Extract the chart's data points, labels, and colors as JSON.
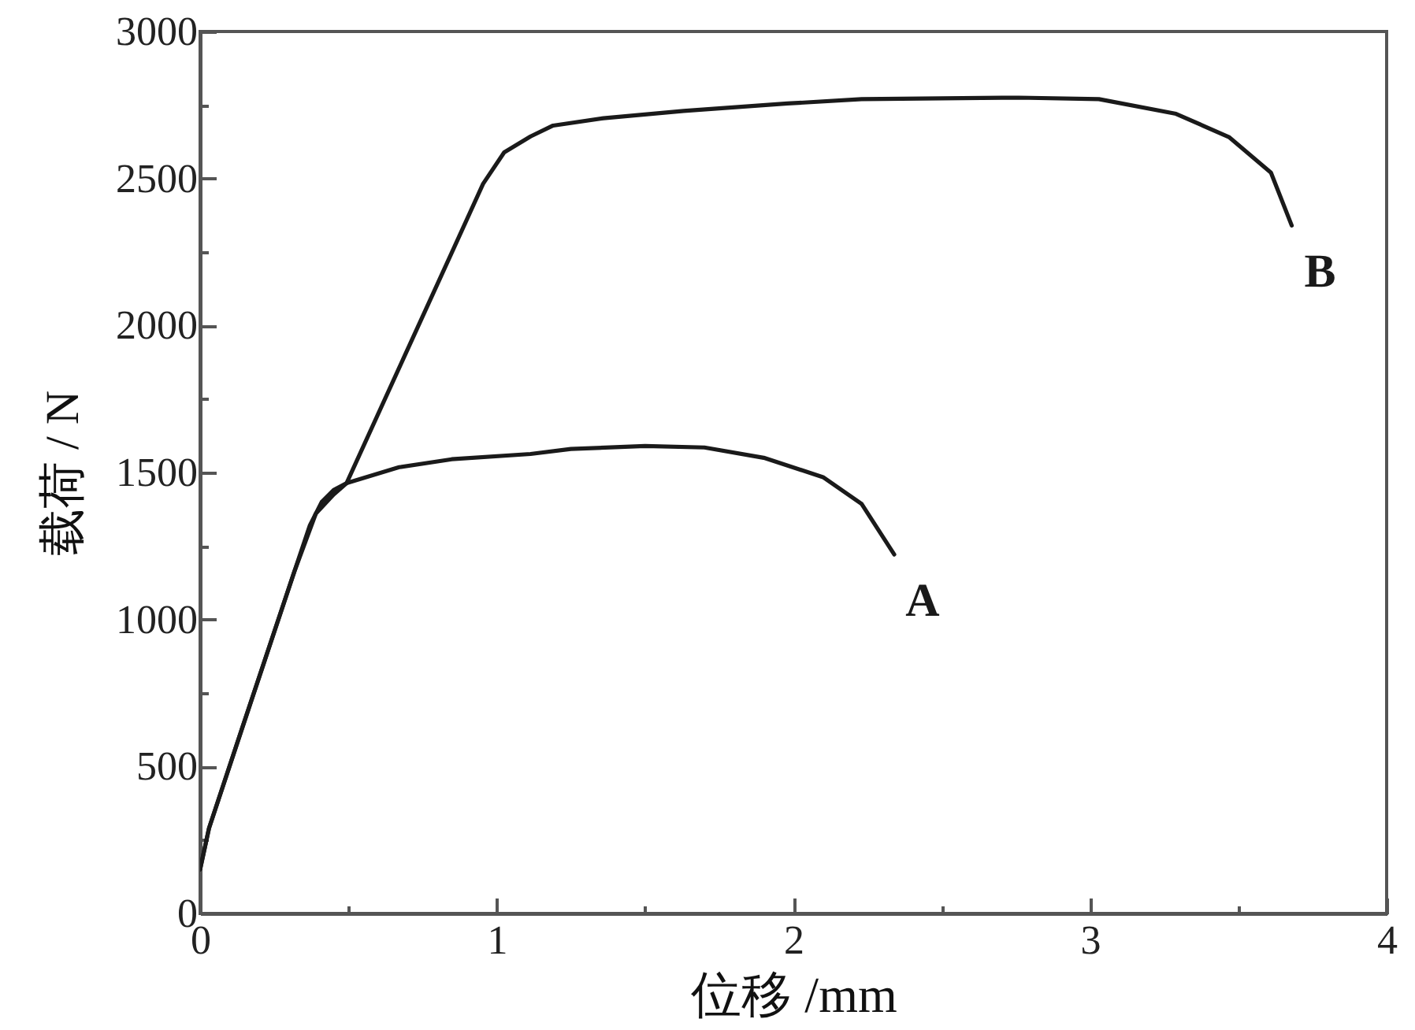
{
  "chart_data": {
    "type": "line",
    "xlabel": "位移 /mm",
    "ylabel": "载荷 / N",
    "xlim": [
      0,
      4
    ],
    "ylim": [
      0,
      3000
    ],
    "xticks": [
      0,
      {
        "value": 0.5,
        "label": null
      },
      1,
      {
        "value": 1.5,
        "label": null
      },
      2,
      {
        "value": 2.5,
        "label": null
      },
      3,
      {
        "value": 3.5,
        "label": null
      },
      4
    ],
    "yticks": [
      0,
      {
        "value": 250,
        "label": null
      },
      500,
      {
        "value": 750,
        "label": null
      },
      1000,
      {
        "value": 1250,
        "label": null
      },
      1500,
      {
        "value": 1750,
        "label": null
      },
      2000,
      {
        "value": 2250,
        "label": null
      },
      2500,
      {
        "value": 2750,
        "label": null
      },
      3000
    ],
    "series": [
      {
        "name": "A",
        "color": "#1a1a1a",
        "x": [
          0,
          0.03,
          0.14,
          0.317,
          0.37,
          0.41,
          0.45,
          0.494,
          0.671,
          0.848,
          1.114,
          1.25,
          1.5,
          1.7,
          1.9,
          2.1,
          2.23,
          2.34
        ],
        "values": [
          150,
          290,
          625,
          1161,
          1320,
          1400,
          1440,
          1464,
          1518,
          1545,
          1563,
          1580,
          1590,
          1585,
          1550,
          1484,
          1393,
          1221
        ]
      },
      {
        "name": "B",
        "color": "#1a1a1a",
        "x": [
          0,
          0.03,
          0.14,
          0.317,
          0.39,
          0.45,
          0.494,
          0.671,
          0.848,
          0.954,
          1.025,
          1.114,
          1.19,
          1.36,
          1.63,
          1.98,
          2.23,
          2.76,
          3.03,
          3.29,
          3.47,
          3.61,
          3.68
        ],
        "values": [
          150,
          290,
          625,
          1161,
          1360,
          1425,
          1464,
          1856,
          2247,
          2482,
          2589,
          2643,
          2680,
          2705,
          2730,
          2755,
          2770,
          2775,
          2770,
          2720,
          2640,
          2520,
          2340
        ]
      }
    ]
  }
}
